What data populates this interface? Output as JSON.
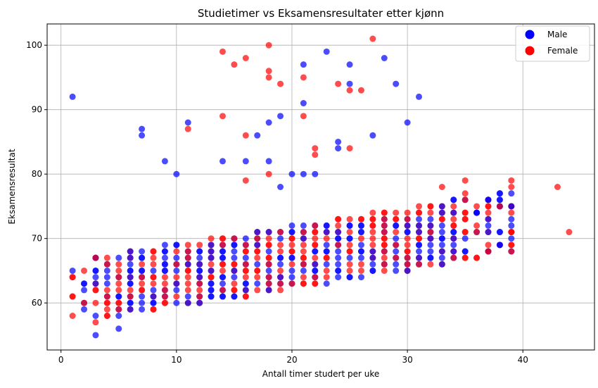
{
  "chart_data": {
    "type": "scatter",
    "title": "Studietimer vs Eksamensresultater etter kjønn",
    "xlabel": "Antall timer studert per uke",
    "ylabel": "Eksamensresultat",
    "xlim": [
      -1.2,
      46.2
    ],
    "ylim": [
      52.7,
      103.3
    ],
    "xticks": [
      0,
      10,
      20,
      30,
      40
    ],
    "yticks": [
      60,
      70,
      80,
      90,
      100
    ],
    "grid": true,
    "legend": {
      "placement": "top-right"
    },
    "band": {
      "x_range": [
        1,
        39
      ],
      "y_low_start": 57,
      "y_high_start": 66,
      "slope": 0.28,
      "y_low_floor": 56
    },
    "series": [
      {
        "name": "Male",
        "color": "#0000ff",
        "outliers": [
          [
            1,
            92
          ],
          [
            3,
            55
          ],
          [
            5,
            56
          ],
          [
            7,
            86
          ],
          [
            7,
            87
          ],
          [
            9,
            82
          ],
          [
            10,
            80
          ],
          [
            11,
            88
          ],
          [
            14,
            82
          ],
          [
            16,
            82
          ],
          [
            17,
            86
          ],
          [
            18,
            82
          ],
          [
            18,
            88
          ],
          [
            19,
            78
          ],
          [
            19,
            89
          ],
          [
            20,
            80
          ],
          [
            21,
            80
          ],
          [
            21,
            91
          ],
          [
            21,
            97
          ],
          [
            22,
            80
          ],
          [
            23,
            99
          ],
          [
            24,
            84
          ],
          [
            24,
            85
          ],
          [
            25,
            94
          ],
          [
            25,
            97
          ],
          [
            27,
            86
          ],
          [
            28,
            98
          ],
          [
            29,
            94
          ],
          [
            30,
            88
          ],
          [
            31,
            92
          ],
          [
            36,
            74
          ],
          [
            37,
            76
          ],
          [
            38,
            69
          ],
          [
            39,
            70
          ],
          [
            39,
            73
          ],
          [
            39,
            75
          ],
          [
            39,
            77
          ]
        ]
      },
      {
        "name": "Female",
        "color": "#ff0000",
        "outliers": [
          [
            1,
            61
          ],
          [
            2,
            65
          ],
          [
            3,
            57
          ],
          [
            3,
            67
          ],
          [
            11,
            87
          ],
          [
            14,
            89
          ],
          [
            14,
            99
          ],
          [
            15,
            97
          ],
          [
            16,
            79
          ],
          [
            16,
            86
          ],
          [
            16,
            98
          ],
          [
            18,
            80
          ],
          [
            18,
            95
          ],
          [
            18,
            96
          ],
          [
            18,
            100
          ],
          [
            19,
            94
          ],
          [
            21,
            89
          ],
          [
            21,
            95
          ],
          [
            22,
            83
          ],
          [
            22,
            84
          ],
          [
            24,
            94
          ],
          [
            25,
            84
          ],
          [
            25,
            93
          ],
          [
            26,
            93
          ],
          [
            27,
            101
          ],
          [
            33,
            78
          ],
          [
            35,
            76
          ],
          [
            35,
            77
          ],
          [
            35,
            79
          ],
          [
            36,
            75
          ],
          [
            37,
            68
          ],
          [
            37,
            75
          ],
          [
            38,
            75
          ],
          [
            39,
            71
          ],
          [
            39,
            78
          ],
          [
            39,
            79
          ],
          [
            43,
            78
          ],
          [
            44,
            71
          ]
        ]
      }
    ]
  }
}
